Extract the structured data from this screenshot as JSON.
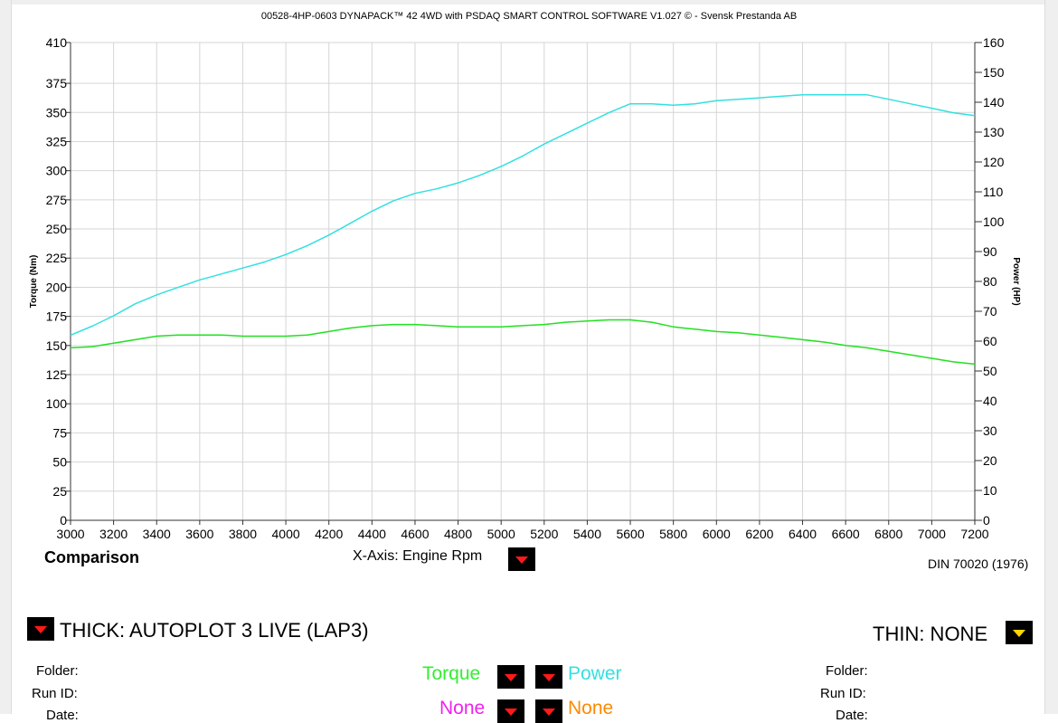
{
  "header": {
    "title": "00528-4HP-0603 DYNAPACK™ 42 4WD with PSDAQ SMART CONTROL SOFTWARE V1.027 © - Svensk Prestanda AB"
  },
  "chart_data": {
    "type": "line",
    "xlabel": "",
    "ylabel": "Torque (Nm)",
    "y2label": "Power (HP)",
    "xlim": [
      3000,
      7200
    ],
    "ylim": [
      0,
      410
    ],
    "y2lim": [
      0,
      160
    ],
    "x_ticks": [
      3000,
      3200,
      3400,
      3600,
      3800,
      4000,
      4200,
      4400,
      4600,
      4800,
      5000,
      5200,
      5400,
      5600,
      5800,
      6000,
      6200,
      6400,
      6600,
      6800,
      7000,
      7200
    ],
    "y_ticks": [
      0,
      25,
      50,
      75,
      100,
      125,
      150,
      175,
      200,
      225,
      250,
      275,
      300,
      325,
      350,
      375,
      410
    ],
    "y2_ticks": [
      0,
      10,
      20,
      30,
      40,
      50,
      60,
      70,
      80,
      90,
      100,
      110,
      120,
      130,
      140,
      150,
      160
    ],
    "grid": true,
    "series": [
      {
        "name": "Torque",
        "axis": "left",
        "color": "#22e022",
        "x": [
          3000,
          3100,
          3200,
          3300,
          3400,
          3500,
          3600,
          3700,
          3800,
          3900,
          4000,
          4100,
          4200,
          4300,
          4400,
          4500,
          4600,
          4700,
          4800,
          4900,
          5000,
          5100,
          5200,
          5300,
          5400,
          5500,
          5600,
          5700,
          5800,
          5900,
          6000,
          6100,
          6200,
          6300,
          6400,
          6500,
          6600,
          6700,
          6800,
          6900,
          7000,
          7100,
          7200
        ],
        "y": [
          148,
          149,
          152,
          155,
          158,
          159,
          159,
          159,
          158,
          158,
          158,
          159,
          162,
          165,
          167,
          168,
          168,
          167,
          166,
          166,
          166,
          167,
          168,
          170,
          171,
          172,
          172,
          170,
          166,
          164,
          162,
          161,
          159,
          157,
          155,
          153,
          150,
          148,
          145,
          142,
          139,
          136,
          134
        ]
      },
      {
        "name": "Power",
        "axis": "right",
        "color": "#33e0e0",
        "x": [
          3000,
          3100,
          3200,
          3300,
          3400,
          3500,
          3600,
          3700,
          3800,
          3900,
          4000,
          4100,
          4200,
          4300,
          4400,
          4500,
          4600,
          4700,
          4800,
          4900,
          5000,
          5100,
          5200,
          5300,
          5400,
          5500,
          5600,
          5700,
          5800,
          5900,
          6000,
          6100,
          6200,
          6300,
          6400,
          6500,
          6600,
          6700,
          6800,
          6900,
          7000,
          7100,
          7200
        ],
        "y": [
          62,
          65,
          68.5,
          72.5,
          75.5,
          78,
          80.5,
          82.5,
          84.5,
          86.5,
          89,
          92,
          95.5,
          99.5,
          103.5,
          107,
          109.5,
          111,
          113,
          115.5,
          118.5,
          122,
          126,
          129.5,
          133,
          136.5,
          139.5,
          139.5,
          139,
          139.5,
          140.5,
          141,
          141.5,
          142,
          142.5,
          142.5,
          142.5,
          142.5,
          141,
          139.5,
          138,
          136.5,
          135.5
        ]
      }
    ]
  },
  "controls": {
    "comparison_label": "Comparison",
    "xaxis_label": "X-Axis: Engine Rpm",
    "din_label": "DIN 70020 (1976)",
    "thick_label": "THICK: AUTOPLOT 3 LIVE (LAP3)",
    "thin_label": "THIN: NONE",
    "left_folder": "Folder:",
    "left_runid": "Run ID:",
    "left_date": "Date:",
    "right_folder": "Folder:",
    "right_runid": "Run ID:",
    "right_date": "Date:",
    "sel_torque": "Torque",
    "sel_power": "Power",
    "sel_none1": "None",
    "sel_none2": "None",
    "colors": {
      "torque": "#33ee33",
      "power": "#33e0e0",
      "none1": "#ee22ee",
      "none2": "#ff8800"
    }
  }
}
